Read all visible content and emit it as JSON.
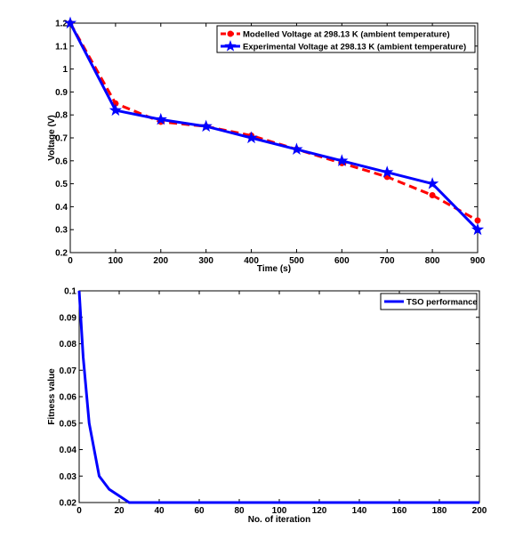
{
  "chart_data": [
    {
      "type": "line",
      "title": "",
      "xlabel": "Time (s)",
      "ylabel": "Voltage (V)",
      "xlim": [
        0,
        900
      ],
      "ylim": [
        0.2,
        1.2
      ],
      "xticks": [
        0,
        100,
        200,
        300,
        400,
        500,
        600,
        700,
        800,
        900
      ],
      "yticks": [
        0.2,
        0.3,
        0.4,
        0.5,
        0.6,
        0.7,
        0.8,
        0.9,
        1,
        1.1,
        1.2
      ],
      "grid": false,
      "legend": "top-right",
      "series": [
        {
          "name": "Modelled Voltage at 298.13 K (ambient temperature)",
          "color": "#ff0000",
          "style": "dashed",
          "marker": "circle",
          "x": [
            0,
            100,
            200,
            300,
            400,
            500,
            600,
            700,
            800,
            900
          ],
          "y": [
            1.2,
            0.85,
            0.77,
            0.75,
            0.71,
            0.65,
            0.59,
            0.53,
            0.45,
            0.34
          ]
        },
        {
          "name": "Experimental Voltage at 298.13 K (ambient temperature)",
          "color": "#0000ff",
          "style": "solid",
          "marker": "star",
          "x": [
            0,
            100,
            200,
            300,
            400,
            500,
            600,
            700,
            800,
            900
          ],
          "y": [
            1.2,
            0.82,
            0.78,
            0.75,
            0.7,
            0.65,
            0.6,
            0.55,
            0.5,
            0.3
          ]
        }
      ]
    },
    {
      "type": "line",
      "title": "",
      "xlabel": "No. of iteration",
      "ylabel": "Fitness value",
      "xlim": [
        0,
        200
      ],
      "ylim": [
        0.02,
        0.1
      ],
      "xticks": [
        0,
        20,
        40,
        60,
        80,
        100,
        120,
        140,
        160,
        180,
        200
      ],
      "yticks": [
        0.02,
        0.03,
        0.04,
        0.05,
        0.06,
        0.07,
        0.08,
        0.09,
        0.1
      ],
      "grid": false,
      "legend": "top-right",
      "series": [
        {
          "name": "TSO performance",
          "color": "#0000ff",
          "style": "solid",
          "x": [
            0,
            2,
            5,
            10,
            15,
            20,
            25,
            30,
            200
          ],
          "y": [
            0.1,
            0.075,
            0.05,
            0.03,
            0.025,
            0.0225,
            0.02,
            0.02,
            0.02
          ]
        }
      ]
    }
  ]
}
